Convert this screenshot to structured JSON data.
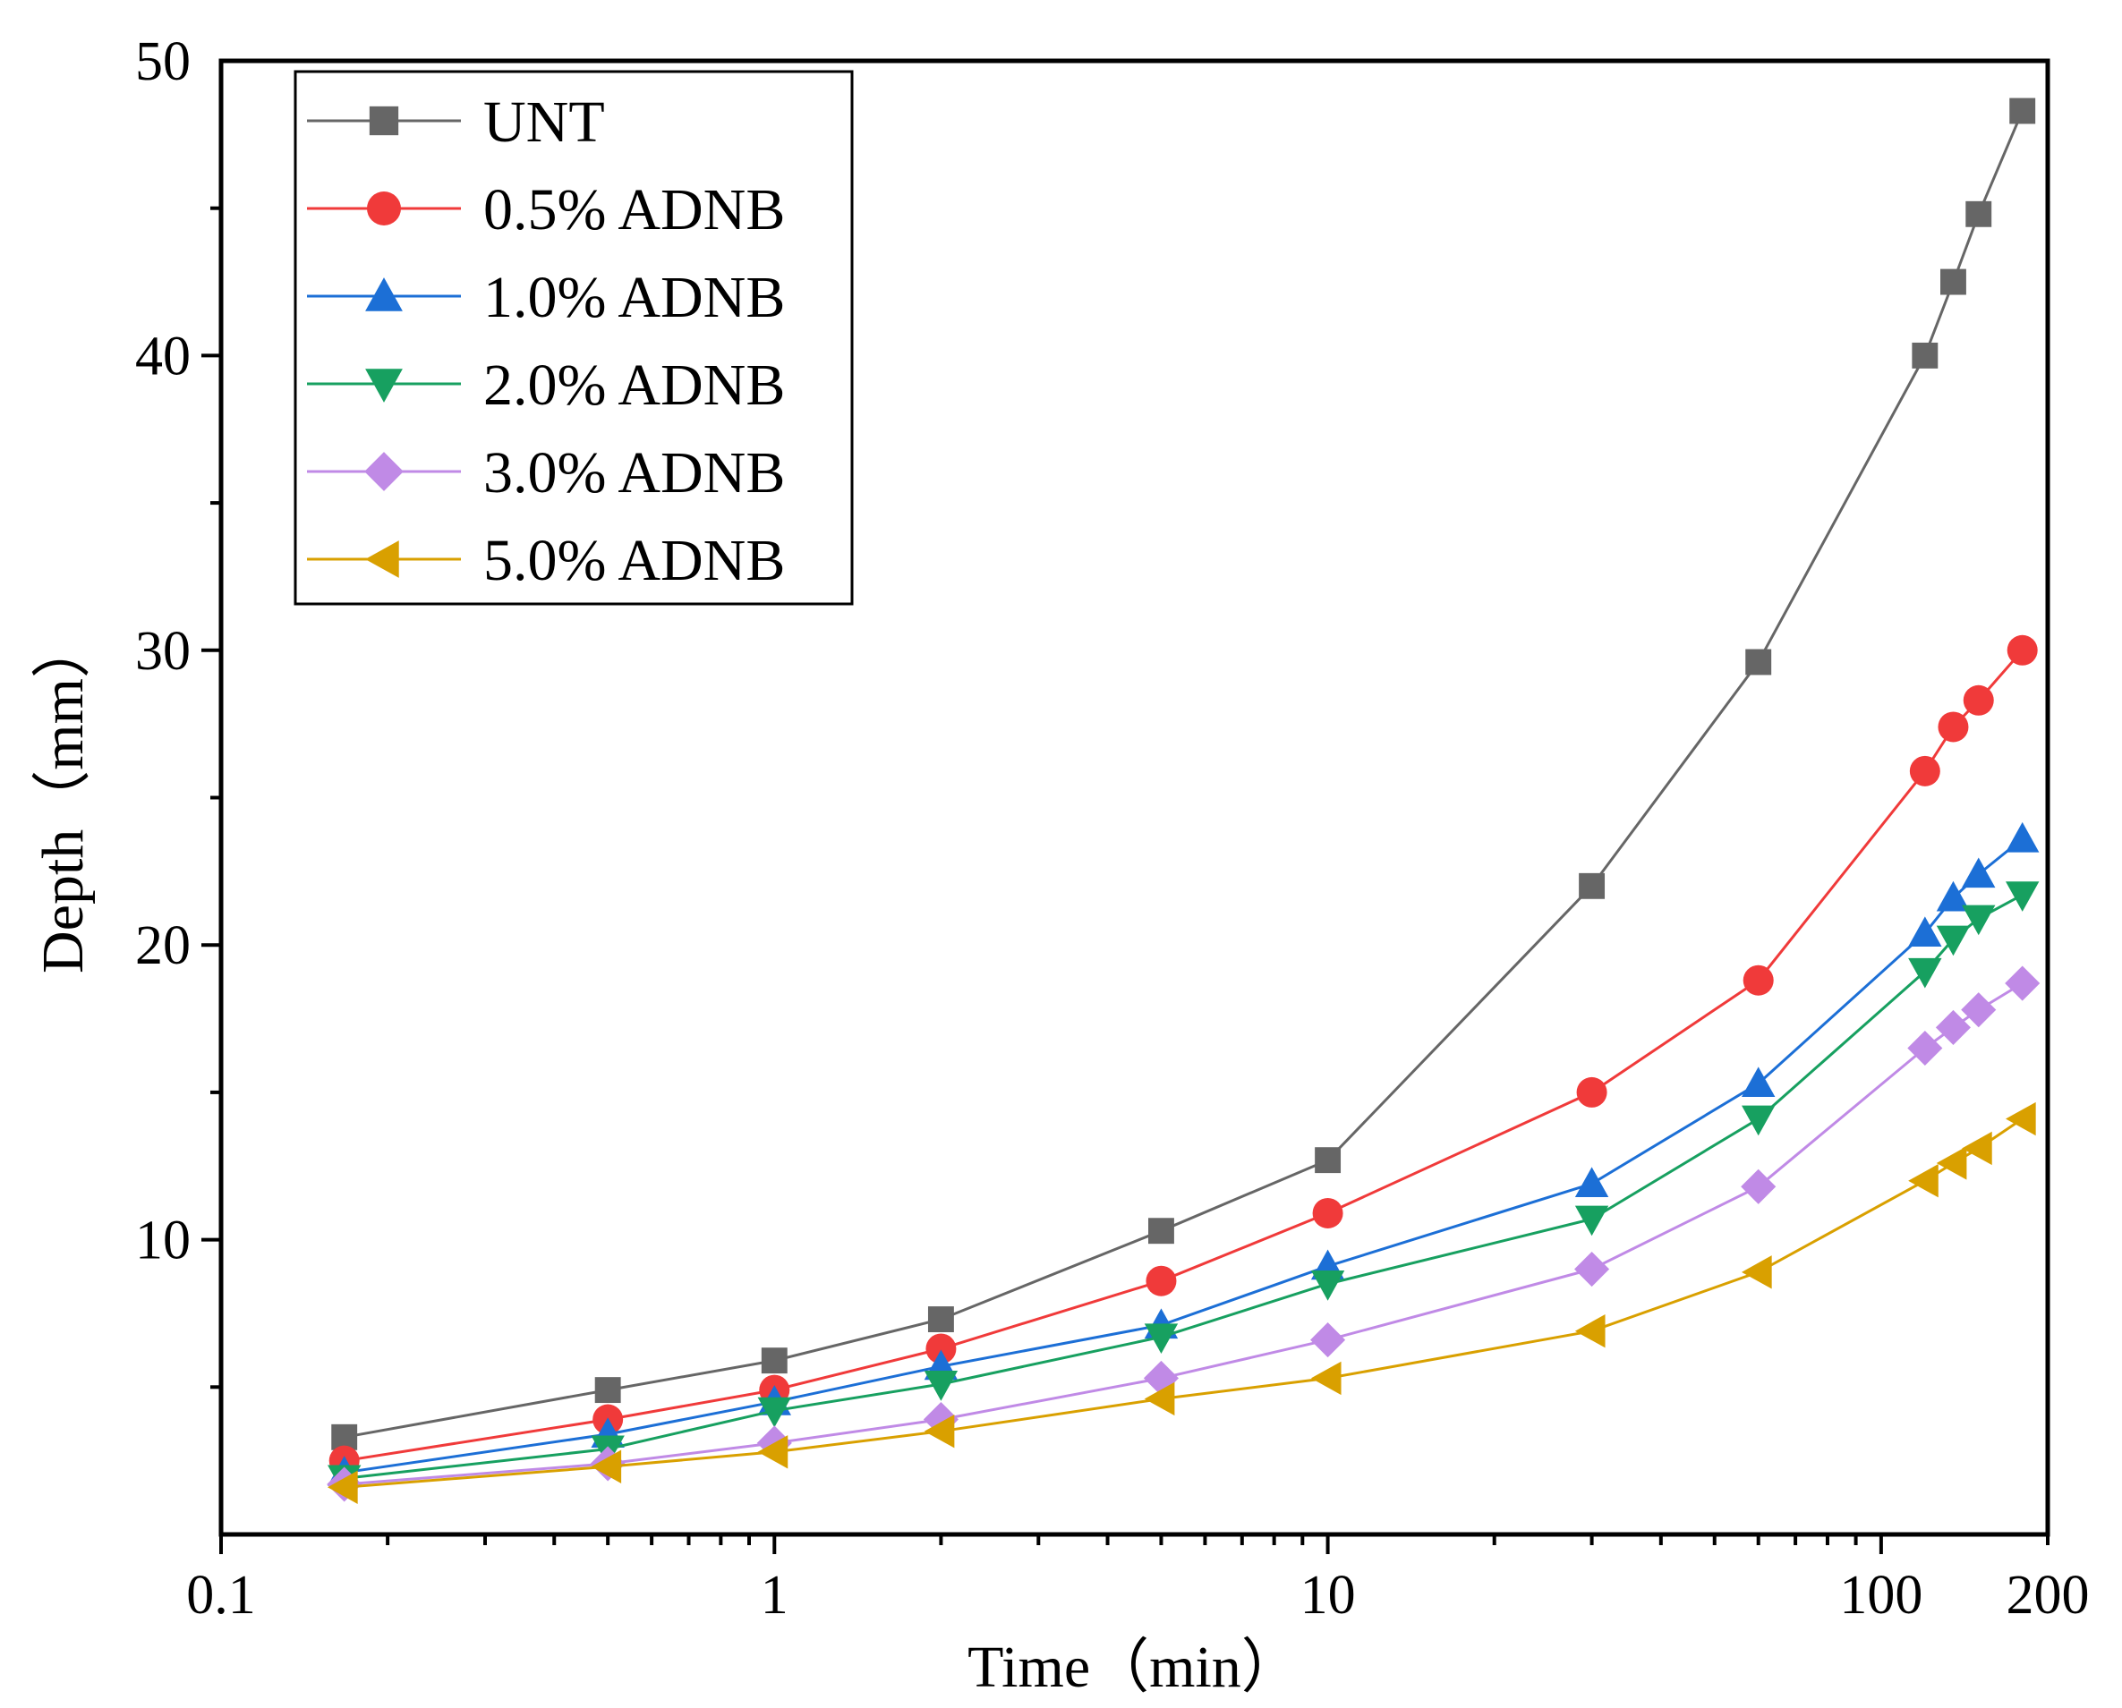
{
  "chart_data": {
    "type": "line",
    "title": "",
    "xlabel": "Time（min）",
    "ylabel": "Depth（mm）",
    "xscale": "log",
    "xlim": [
      0.1,
      200
    ],
    "ylim": [
      0,
      50
    ],
    "x_ticks": [
      0.1,
      1,
      10,
      100,
      200
    ],
    "x_tick_labels": [
      "0.1",
      "1",
      "10",
      "100",
      "200"
    ],
    "y_ticks": [
      10,
      20,
      30,
      40,
      50
    ],
    "y_tick_labels": [
      "10",
      "20",
      "30",
      "40",
      "50"
    ],
    "legend_position": "top-left",
    "grid": false,
    "x": [
      0.167,
      0.5,
      1,
      2,
      5,
      10,
      30,
      60,
      120,
      135,
      150,
      180
    ],
    "series": [
      {
        "name": "UNT",
        "color": "#666666",
        "marker": "square",
        "values": [
          3.3,
          4.9,
          5.9,
          7.3,
          10.3,
          12.7,
          22.0,
          29.6,
          40.0,
          42.5,
          44.8,
          48.3
        ]
      },
      {
        "name": "0.5% ADNB",
        "color": "#f03a3a",
        "marker": "circle",
        "values": [
          2.5,
          3.9,
          4.9,
          6.3,
          8.6,
          10.9,
          15.0,
          18.8,
          25.9,
          27.4,
          28.3,
          30.0
        ]
      },
      {
        "name": "1.0% ADNB",
        "color": "#1c6fd6",
        "marker": "triangle-up",
        "values": [
          2.1,
          3.4,
          4.5,
          5.7,
          7.1,
          9.1,
          11.9,
          15.3,
          20.4,
          21.6,
          22.4,
          23.6
        ]
      },
      {
        "name": "2.0% ADNB",
        "color": "#17a060",
        "marker": "triangle-down",
        "values": [
          1.9,
          2.9,
          4.2,
          5.1,
          6.7,
          8.5,
          10.7,
          14.1,
          19.1,
          20.2,
          20.9,
          21.7
        ]
      },
      {
        "name": "3.0% ADNB",
        "color": "#c08ae6",
        "marker": "diamond",
        "values": [
          1.7,
          2.4,
          3.1,
          3.9,
          5.3,
          6.6,
          9.0,
          11.8,
          16.5,
          17.2,
          17.8,
          18.7
        ]
      },
      {
        "name": "5.0% ADNB",
        "color": "#d9a000",
        "marker": "triangle-left",
        "values": [
          1.6,
          2.3,
          2.8,
          3.5,
          4.6,
          5.3,
          6.9,
          8.9,
          12.0,
          12.6,
          13.1,
          14.1
        ]
      }
    ]
  }
}
